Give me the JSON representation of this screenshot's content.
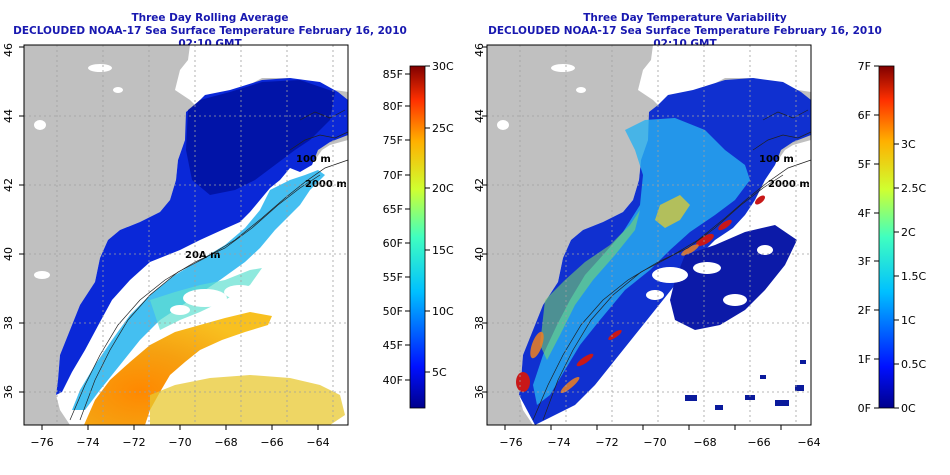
{
  "panels": [
    {
      "id": "left",
      "title_line1": "Three Day Rolling Average",
      "title_line2": "DECLOUDED NOAA-17 Sea Surface Temperature February 16, 2010 02:10 GMT",
      "colorbar_left_labels": [
        "85F",
        "80F",
        "75F",
        "70F",
        "65F",
        "60F",
        "55F",
        "50F",
        "45F",
        "40F"
      ],
      "colorbar_right_labels": [
        "30C",
        "25C",
        "20C",
        "15C",
        "10C",
        "5C"
      ],
      "contour_labels": [
        "100 m",
        "2000 m",
        "20A m"
      ]
    },
    {
      "id": "right",
      "title_line1": "Three Day Temperature Variability",
      "title_line2": "DECLOUDED NOAA-17 Sea Surface Temperature February 16, 2010 02:10 GMT",
      "colorbar_left_labels": [
        "7F",
        "6F",
        "5F",
        "4F",
        "3F",
        "2F",
        "1F",
        "0F"
      ],
      "colorbar_right_labels": [
        "3C",
        "2.5C",
        "2C",
        "1.5C",
        "1C",
        "0.5C",
        "0C"
      ],
      "contour_labels": [
        "100 m",
        "2000 m"
      ]
    }
  ],
  "axes": {
    "lon_ticks": [
      "−76",
      "−74",
      "−72",
      "−70",
      "−68",
      "−66",
      "−64"
    ],
    "lat_ticks": [
      "36",
      "38",
      "40",
      "42",
      "44",
      "46"
    ]
  },
  "colors": {
    "title": "#1818b0",
    "land": "#c0c0c0",
    "deep_blue": "#00108c",
    "mid_blue": "#1040e0",
    "cyan": "#20c8e8",
    "orange": "#f08020",
    "red": "#b01010"
  }
}
